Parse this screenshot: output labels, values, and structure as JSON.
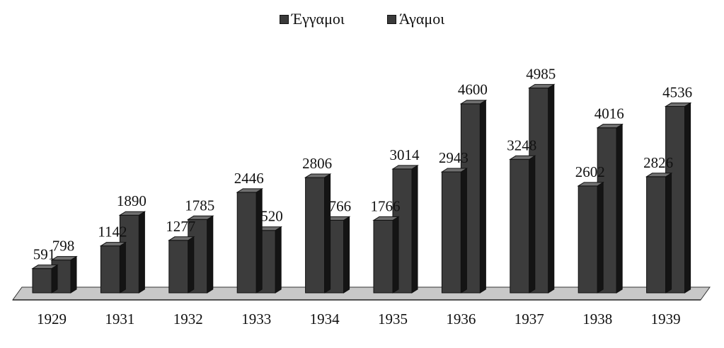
{
  "chart_data": {
    "type": "bar",
    "categories": [
      "1929",
      "1931",
      "1932",
      "1933",
      "1934",
      "1935",
      "1936",
      "1937",
      "1938",
      "1939"
    ],
    "series": [
      {
        "name": "Έγγαμοι",
        "values": [
          591,
          1142,
          1277,
          2446,
          2806,
          1766,
          2943,
          3248,
          2602,
          2826
        ]
      },
      {
        "name": "Άγαμοι",
        "values": [
          798,
          1890,
          1785,
          1520,
          1766,
          3014,
          4600,
          4985,
          4016,
          4536
        ]
      }
    ],
    "title": "",
    "xlabel": "",
    "ylabel": "",
    "ylim": [
      0,
      5000
    ],
    "legend": "top-center",
    "grid": false,
    "colors": {
      "bar_front": "#3c3c3c",
      "bar_side": "#141414",
      "bar_top": "#707070",
      "floor": "#c8c8c8"
    }
  }
}
